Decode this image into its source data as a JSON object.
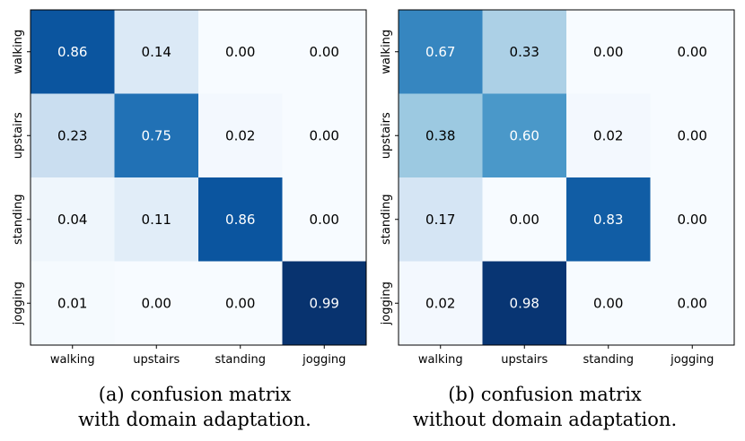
{
  "chart_data": [
    {
      "type": "heatmap",
      "title": "",
      "xlabel": "",
      "ylabel": "",
      "colormap": "Blues",
      "vlim": [
        0,
        1
      ],
      "x_categories": [
        "walking",
        "upstairs",
        "standing",
        "jogging"
      ],
      "y_categories": [
        "walking",
        "upstairs",
        "standing",
        "jogging"
      ],
      "values": [
        [
          0.86,
          0.14,
          0.0,
          0.0
        ],
        [
          0.23,
          0.75,
          0.02,
          0.0
        ],
        [
          0.04,
          0.11,
          0.86,
          0.0
        ],
        [
          0.01,
          0.0,
          0.0,
          0.99
        ]
      ],
      "labels": [
        [
          "0.86",
          "0.14",
          "0.00",
          "0.00"
        ],
        [
          "0.23",
          "0.75",
          "0.02",
          "0.00"
        ],
        [
          "0.04",
          "0.11",
          "0.86",
          "0.00"
        ],
        [
          "0.01",
          "0.00",
          "0.00",
          "0.99"
        ]
      ]
    },
    {
      "type": "heatmap",
      "title": "",
      "xlabel": "",
      "ylabel": "",
      "colormap": "Blues",
      "vlim": [
        0,
        1
      ],
      "x_categories": [
        "walking",
        "upstairs",
        "standing",
        "jogging"
      ],
      "y_categories": [
        "walking",
        "upstairs",
        "standing",
        "jogging"
      ],
      "values": [
        [
          0.67,
          0.33,
          0.0,
          0.0
        ],
        [
          0.38,
          0.6,
          0.02,
          0.0
        ],
        [
          0.17,
          0.0,
          0.83,
          0.0
        ],
        [
          0.02,
          0.98,
          0.0,
          0.0
        ]
      ],
      "labels": [
        [
          "0.67",
          "0.33",
          "0.00",
          "0.00"
        ],
        [
          "0.38",
          "0.60",
          "0.02",
          "0.00"
        ],
        [
          "0.17",
          "0.00",
          "0.83",
          "0.00"
        ],
        [
          "0.02",
          "0.98",
          "0.00",
          "0.00"
        ]
      ]
    }
  ],
  "captions": [
    {
      "line1": "(a)  confusion matrix",
      "line2": "with domain adaptation."
    },
    {
      "line1": "(b) confusion matrix",
      "line2": "without domain adaptation."
    }
  ]
}
